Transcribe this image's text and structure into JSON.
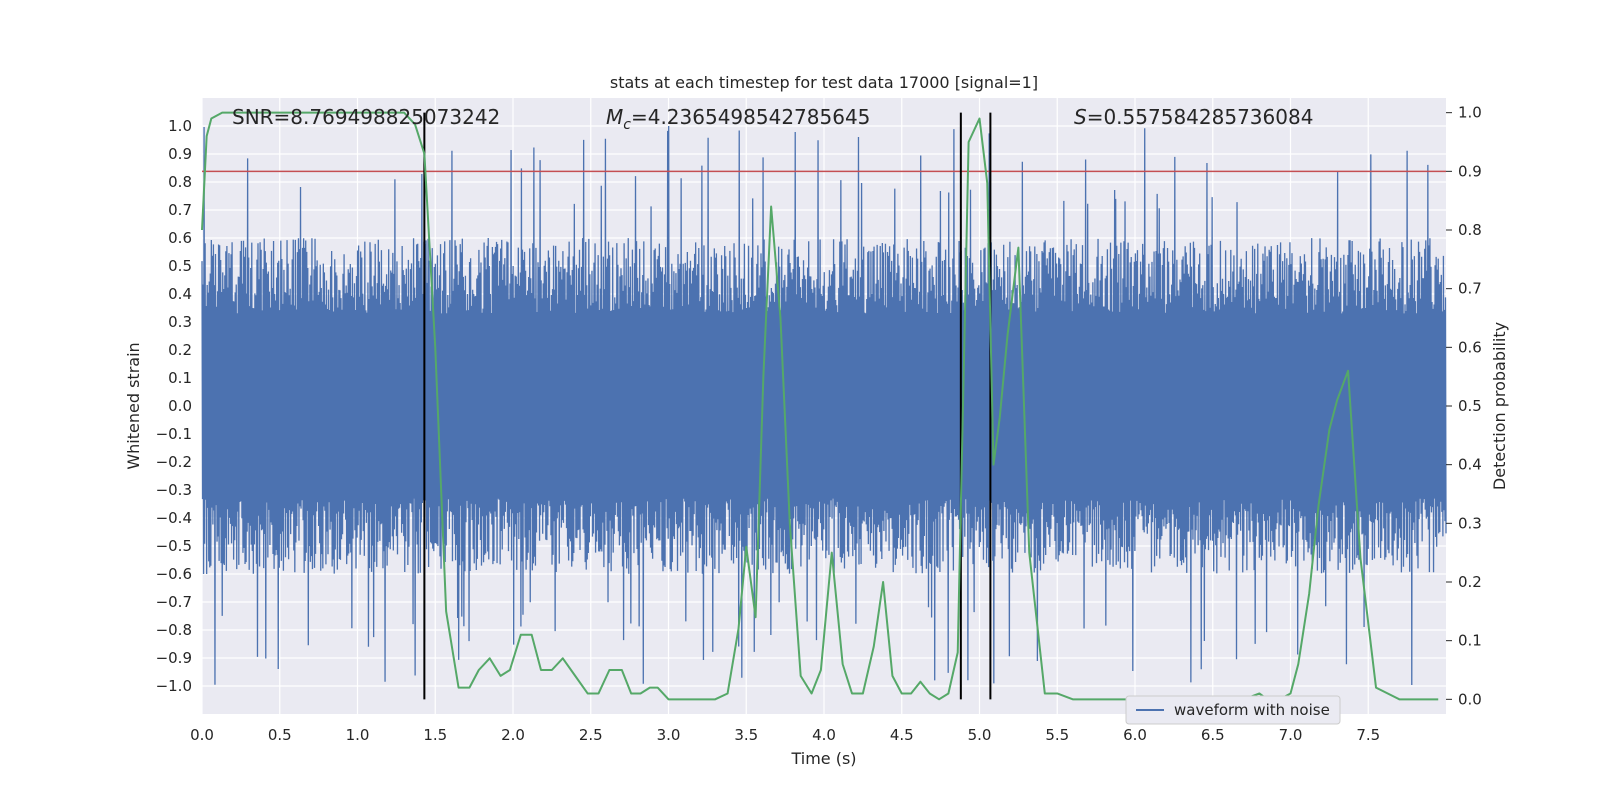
{
  "chart_data": {
    "type": "line",
    "title": "stats at each timestep for test data 17000 [signal=1]",
    "xlabel": "Time (s)",
    "ylabel": "Whitened strain",
    "ylabel_right": "Detection probability",
    "xlim": [
      0,
      8
    ],
    "ylim": [
      -1.1,
      1.1
    ],
    "ylim_right": [
      -0.025,
      1.025
    ],
    "x_ticks": [
      "0.0",
      "0.5",
      "1.0",
      "1.5",
      "2.0",
      "2.5",
      "3.0",
      "3.5",
      "4.0",
      "4.5",
      "5.0",
      "5.5",
      "6.0",
      "6.5",
      "7.0",
      "7.5"
    ],
    "y_ticks": [
      "−1.0",
      "−0.9",
      "−0.8",
      "−0.7",
      "−0.6",
      "−0.5",
      "−0.4",
      "−0.3",
      "−0.2",
      "−0.1",
      "0.0",
      "0.1",
      "0.2",
      "0.3",
      "0.4",
      "0.5",
      "0.6",
      "0.7",
      "0.8",
      "0.9",
      "1.0"
    ],
    "y_ticks_right": [
      "0.0",
      "0.1",
      "0.2",
      "0.3",
      "0.4",
      "0.5",
      "0.6",
      "0.7",
      "0.8",
      "0.9",
      "1.0"
    ],
    "grid": true,
    "legend": {
      "placement": "bottom-right",
      "entries": [
        "waveform with noise"
      ]
    },
    "annotations": {
      "snr": "SNR=8.769498825073242",
      "mc_symbol": "M",
      "mc_sub": "c",
      "mc_value": "=4.2365498542785645",
      "s_symbol": "S",
      "s_value": "=0.557584285736084"
    },
    "threshold_right": 0.9,
    "threshold_color": "#c44e52",
    "vertical_lines": [
      1.43,
      4.88,
      5.07
    ],
    "waveform": {
      "name": "waveform with noise",
      "color": "#4c72b0",
      "samples": 2400,
      "typical_positive_peak": 0.6,
      "typical_negative_peak": -0.6,
      "max": 1.0,
      "min": -1.0
    },
    "detection_probability": {
      "color": "#55a868",
      "x": [
        0.0,
        0.03,
        0.06,
        0.13,
        0.2,
        0.4,
        0.6,
        0.8,
        1.0,
        1.15,
        1.3,
        1.37,
        1.43,
        1.5,
        1.57,
        1.65,
        1.72,
        1.78,
        1.85,
        1.92,
        1.98,
        2.05,
        2.12,
        2.18,
        2.25,
        2.32,
        2.4,
        2.48,
        2.55,
        2.62,
        2.7,
        2.76,
        2.82,
        2.88,
        2.93,
        3.0,
        3.1,
        3.2,
        3.3,
        3.38,
        3.45,
        3.5,
        3.56,
        3.61,
        3.66,
        3.72,
        3.78,
        3.85,
        3.92,
        3.98,
        4.05,
        4.12,
        4.18,
        4.25,
        4.32,
        4.38,
        4.44,
        4.5,
        4.56,
        4.62,
        4.68,
        4.74,
        4.8,
        4.86,
        4.93,
        5.0,
        5.05,
        5.09,
        5.13,
        5.18,
        5.25,
        5.32,
        5.42,
        5.5,
        5.6,
        5.8,
        6.0,
        6.2,
        6.4,
        6.6,
        6.7,
        6.8,
        6.85,
        6.93,
        7.0,
        7.05,
        7.12,
        7.18,
        7.25,
        7.3,
        7.37,
        7.45,
        7.55,
        7.7,
        7.9,
        7.95
      ],
      "values": [
        0.8,
        0.96,
        0.99,
        1.0,
        1.0,
        1.0,
        1.0,
        1.0,
        1.0,
        1.0,
        1.0,
        0.98,
        0.93,
        0.6,
        0.15,
        0.02,
        0.02,
        0.05,
        0.07,
        0.04,
        0.05,
        0.11,
        0.11,
        0.05,
        0.05,
        0.07,
        0.04,
        0.01,
        0.01,
        0.05,
        0.05,
        0.01,
        0.01,
        0.02,
        0.02,
        0.0,
        0.0,
        0.0,
        0.0,
        0.01,
        0.12,
        0.26,
        0.14,
        0.55,
        0.84,
        0.65,
        0.3,
        0.04,
        0.01,
        0.05,
        0.25,
        0.06,
        0.01,
        0.01,
        0.09,
        0.2,
        0.04,
        0.01,
        0.01,
        0.03,
        0.01,
        0.0,
        0.01,
        0.08,
        0.95,
        0.99,
        0.88,
        0.4,
        0.48,
        0.62,
        0.77,
        0.25,
        0.01,
        0.01,
        0.0,
        0.0,
        0.0,
        0.0,
        0.0,
        0.0,
        0.0,
        0.01,
        0.0,
        0.0,
        0.01,
        0.06,
        0.18,
        0.33,
        0.46,
        0.51,
        0.56,
        0.24,
        0.02,
        0.0,
        0.0,
        0.0
      ]
    }
  }
}
